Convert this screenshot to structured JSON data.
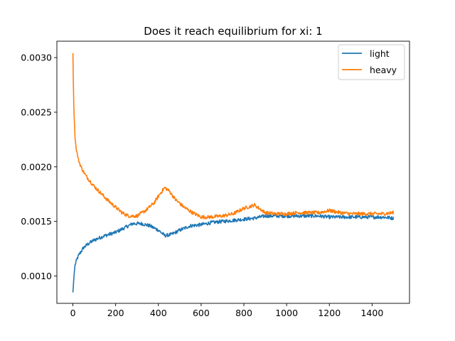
{
  "chart_data": {
    "type": "line",
    "title": "Does it reach equilibrium for xi: 1",
    "xlabel": "",
    "ylabel": "",
    "xlim": [
      -75,
      1575
    ],
    "ylim": [
      0.00075,
      0.00315
    ],
    "xticks": [
      0,
      200,
      400,
      600,
      800,
      1000,
      1200,
      1400
    ],
    "xtick_labels": [
      "0",
      "200",
      "400",
      "600",
      "800",
      "1000",
      "1200",
      "1400"
    ],
    "yticks": [
      0.001,
      0.0015,
      0.002,
      0.0025,
      0.003
    ],
    "ytick_labels": [
      "0.0010",
      "0.0015",
      "0.0020",
      "0.0025",
      "0.0030"
    ],
    "grid": false,
    "legend_position": "top-right",
    "series": [
      {
        "name": "light",
        "color": "#1f77b4",
        "points": [
          [
            0,
            0.00085
          ],
          [
            5,
            0.001
          ],
          [
            10,
            0.0011
          ],
          [
            20,
            0.00116
          ],
          [
            30,
            0.0012
          ],
          [
            50,
            0.00126
          ],
          [
            75,
            0.0013
          ],
          [
            100,
            0.00133
          ],
          [
            150,
            0.00137
          ],
          [
            200,
            0.0014
          ],
          [
            250,
            0.00145
          ],
          [
            280,
            0.00148
          ],
          [
            320,
            0.00148
          ],
          [
            360,
            0.00146
          ],
          [
            400,
            0.00142
          ],
          [
            430,
            0.00137
          ],
          [
            460,
            0.00138
          ],
          [
            500,
            0.00142
          ],
          [
            550,
            0.00146
          ],
          [
            600,
            0.00147
          ],
          [
            650,
            0.00149
          ],
          [
            700,
            0.0015
          ],
          [
            750,
            0.00151
          ],
          [
            800,
            0.00152
          ],
          [
            850,
            0.00153
          ],
          [
            900,
            0.00155
          ],
          [
            950,
            0.00155
          ],
          [
            1000,
            0.00155
          ],
          [
            1050,
            0.00155
          ],
          [
            1100,
            0.00155
          ],
          [
            1150,
            0.00155
          ],
          [
            1200,
            0.00154
          ],
          [
            1250,
            0.00154
          ],
          [
            1300,
            0.00154
          ],
          [
            1350,
            0.00154
          ],
          [
            1400,
            0.00154
          ],
          [
            1450,
            0.00154
          ],
          [
            1500,
            0.00153
          ]
        ]
      },
      {
        "name": "heavy",
        "color": "#ff7f0e",
        "points": [
          [
            0,
            0.00304
          ],
          [
            3,
            0.00265
          ],
          [
            6,
            0.00245
          ],
          [
            10,
            0.00228
          ],
          [
            15,
            0.00217
          ],
          [
            25,
            0.00207
          ],
          [
            40,
            0.00199
          ],
          [
            60,
            0.00192
          ],
          [
            80,
            0.00187
          ],
          [
            100,
            0.00182
          ],
          [
            130,
            0.00176
          ],
          [
            160,
            0.0017
          ],
          [
            200,
            0.00163
          ],
          [
            230,
            0.00158
          ],
          [
            260,
            0.00155
          ],
          [
            300,
            0.00155
          ],
          [
            340,
            0.0016
          ],
          [
            380,
            0.00167
          ],
          [
            410,
            0.00176
          ],
          [
            430,
            0.00181
          ],
          [
            450,
            0.00178
          ],
          [
            480,
            0.0017
          ],
          [
            520,
            0.00163
          ],
          [
            560,
            0.00158
          ],
          [
            600,
            0.00154
          ],
          [
            640,
            0.00154
          ],
          [
            700,
            0.00155
          ],
          [
            750,
            0.00157
          ],
          [
            800,
            0.00162
          ],
          [
            850,
            0.00165
          ],
          [
            900,
            0.00158
          ],
          [
            950,
            0.00157
          ],
          [
            1000,
            0.00157
          ],
          [
            1050,
            0.00158
          ],
          [
            1100,
            0.00158
          ],
          [
            1150,
            0.00158
          ],
          [
            1200,
            0.0016
          ],
          [
            1250,
            0.00158
          ],
          [
            1300,
            0.00157
          ],
          [
            1350,
            0.00157
          ],
          [
            1400,
            0.00157
          ],
          [
            1450,
            0.00157
          ],
          [
            1500,
            0.00158
          ]
        ]
      }
    ]
  }
}
